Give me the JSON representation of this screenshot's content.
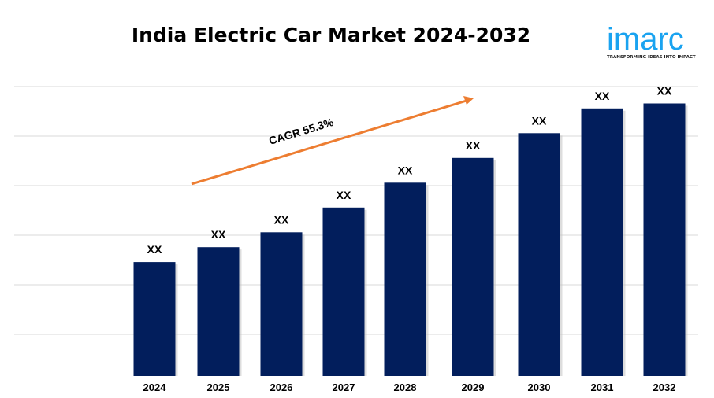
{
  "title": "India Electric Car Market 2024-2032",
  "logo": {
    "word": "imarc",
    "tagline": "TRANSFORMING IDEAS INTO IMPACT",
    "color": "#1aa3f0"
  },
  "chart_data": {
    "type": "bar",
    "title": "India Electric Car Market 2024-2032",
    "categories": [
      "2024",
      "2025",
      "2026",
      "2027",
      "2028",
      "2029",
      "2030",
      "2031",
      "2032"
    ],
    "values": [
      2.3,
      2.6,
      2.9,
      3.4,
      3.9,
      4.4,
      4.9,
      5.4,
      5.5
    ],
    "data_labels": [
      "XX",
      "XX",
      "XX",
      "XX",
      "XX",
      "XX",
      "XX",
      "XX",
      "XX"
    ],
    "xlabel": "",
    "ylabel": "",
    "ylim": [
      0,
      6
    ],
    "grid": true,
    "bar_color": "#021e5c",
    "annotation": {
      "text": "CAGR 55.3%",
      "arrow_color": "#ed7d31"
    }
  }
}
